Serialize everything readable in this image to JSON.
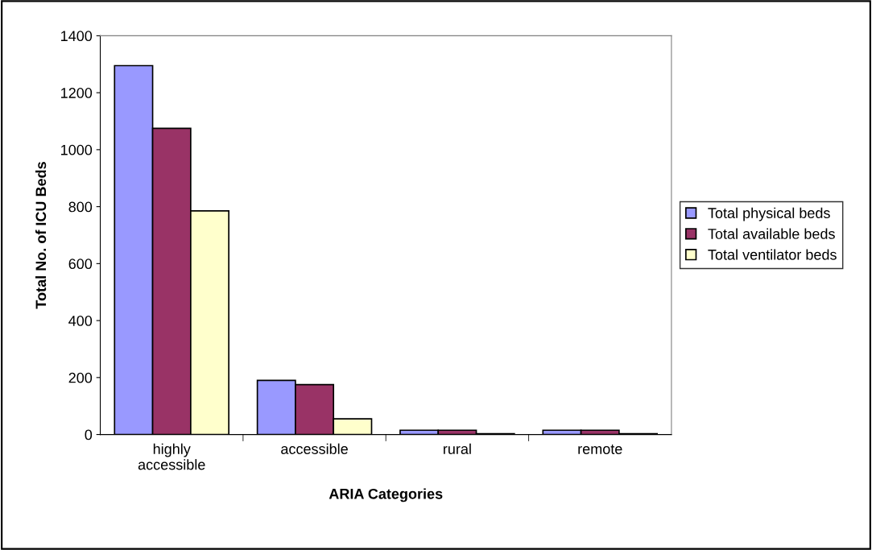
{
  "chart_data": {
    "type": "bar",
    "xlabel": "ARIA Categories",
    "ylabel": "Total No. of ICU Beds",
    "categories": [
      "highly\naccessible",
      "accessible",
      "rural",
      "remote"
    ],
    "series": [
      {
        "name": "Total physical beds",
        "color": "#9999ff",
        "values": [
          1295,
          190,
          15,
          15
        ]
      },
      {
        "name": "Total available beds",
        "color": "#993366",
        "values": [
          1075,
          175,
          15,
          15
        ]
      },
      {
        "name": "Total ventilator beds",
        "color": "#ffffcc",
        "values": [
          785,
          55,
          3,
          3
        ]
      }
    ],
    "ylim": [
      0,
      1400
    ],
    "yticks": [
      0,
      200,
      400,
      600,
      800,
      1000,
      1200,
      1400
    ],
    "grid": false,
    "legend": "right"
  }
}
